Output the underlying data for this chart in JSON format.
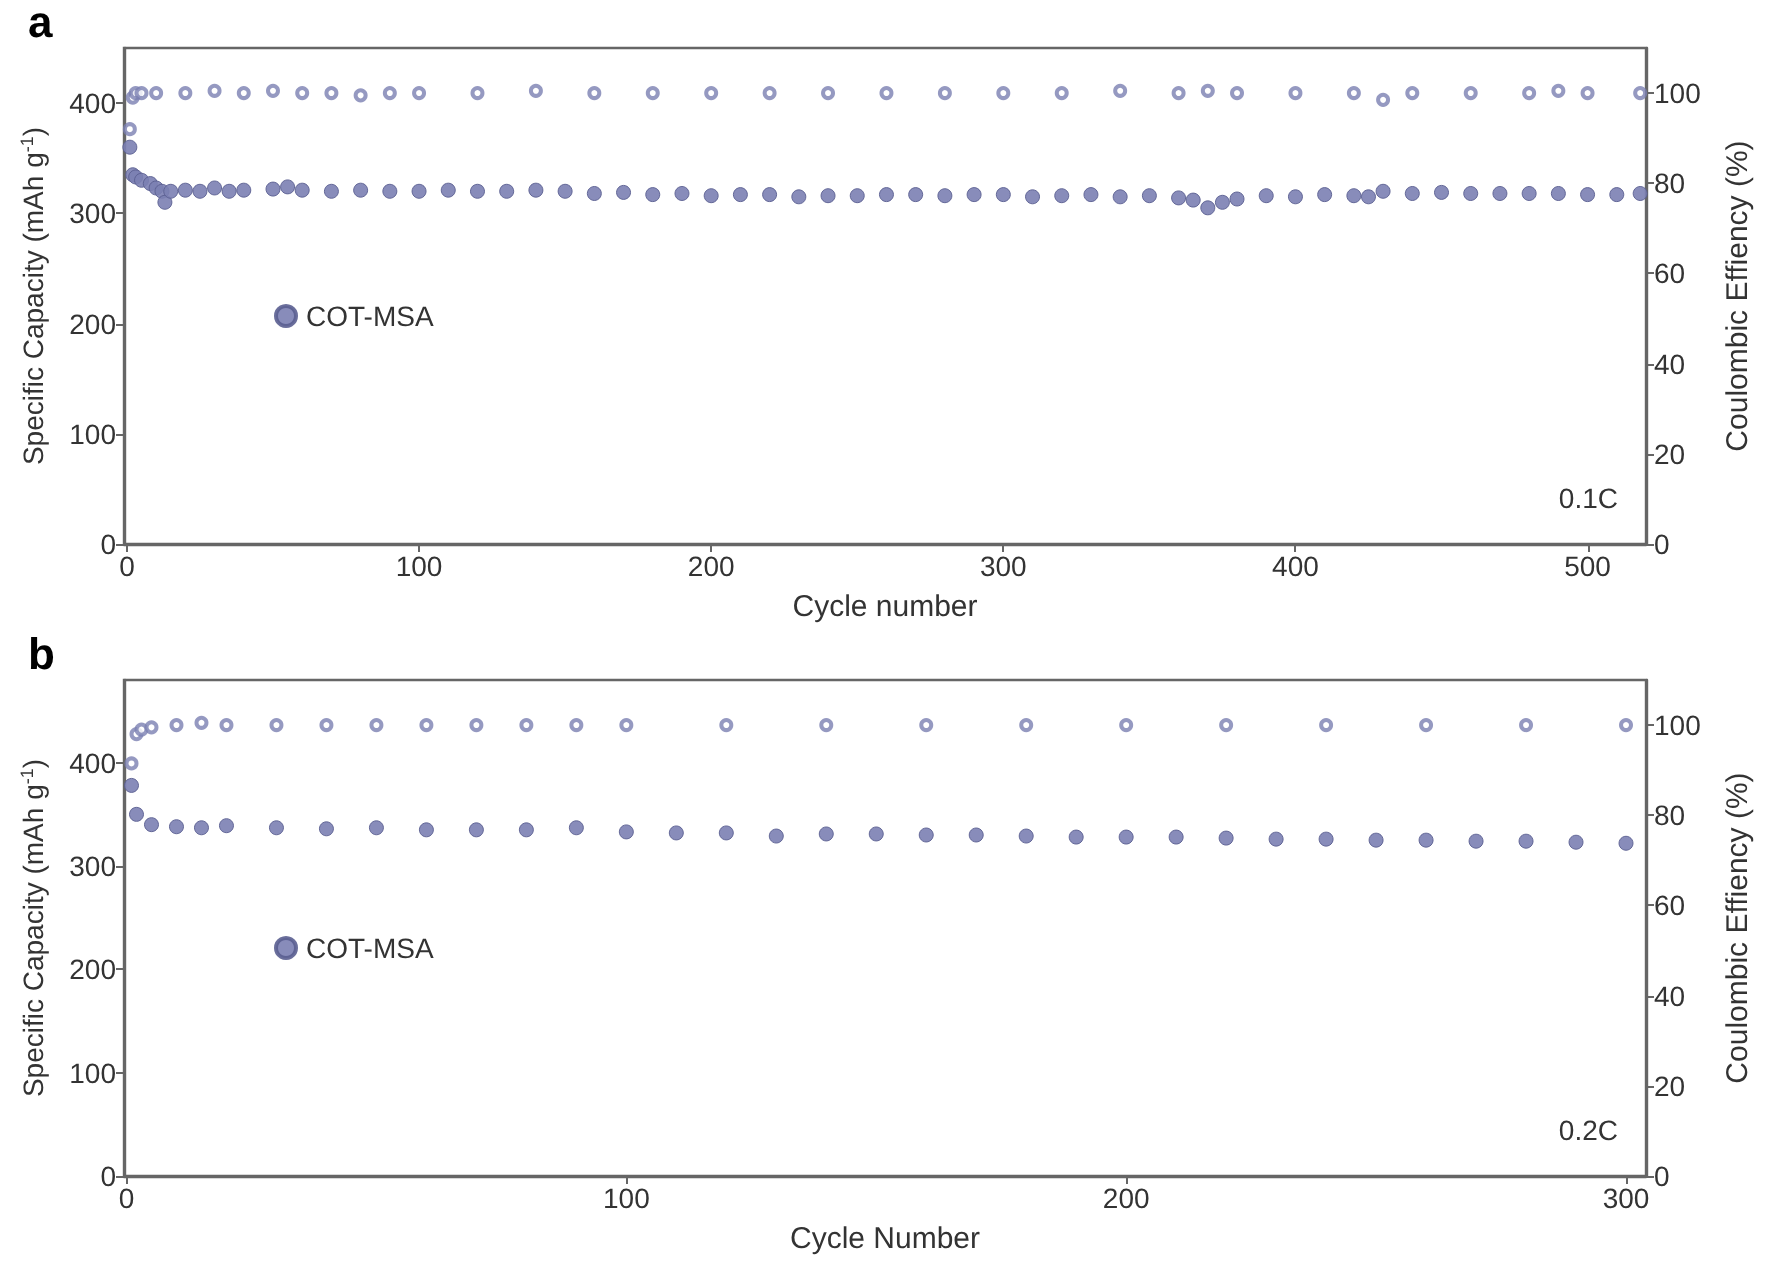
{
  "chart_data": [
    {
      "type": "scatter",
      "title": "a",
      "xlabel": "Cycle number",
      "ylabel": "Specific Capacity (mAh g$^{-1}$)",
      "y2label": "Coulombic Effiency (%)",
      "annotations": [
        "0.1C"
      ],
      "xlim": [
        -1,
        520
      ],
      "xticks": [
        0,
        100,
        200,
        300,
        400,
        500
      ],
      "ylim": [
        0,
        450
      ],
      "yticks": [
        0,
        100,
        200,
        300,
        400
      ],
      "y2lim": [
        0,
        110
      ],
      "y2ticks": [
        0,
        20,
        40,
        60,
        80,
        100
      ],
      "grid": false,
      "legend": "left",
      "marker": "circle",
      "series": [
        {
          "name": "COT-MSA",
          "color": "#7b7fb2",
          "x": [
            1,
            2,
            3,
            5,
            8,
            10,
            12,
            13,
            15,
            20,
            25,
            30,
            35,
            40,
            50,
            55,
            60,
            70,
            80,
            90,
            100,
            110,
            120,
            130,
            140,
            150,
            160,
            170,
            180,
            190,
            200,
            210,
            220,
            230,
            240,
            250,
            260,
            270,
            280,
            290,
            300,
            310,
            320,
            330,
            340,
            350,
            360,
            365,
            370,
            375,
            380,
            390,
            400,
            410,
            420,
            425,
            430,
            440,
            450,
            460,
            470,
            480,
            490,
            500,
            510,
            518
          ],
          "values": [
            360,
            335,
            333,
            330,
            327,
            323,
            320,
            310,
            320,
            321,
            320,
            323,
            320,
            321,
            322,
            324,
            321,
            320,
            321,
            320,
            320,
            321,
            320,
            320,
            321,
            320,
            318,
            319,
            317,
            318,
            316,
            317,
            317,
            315,
            316,
            316,
            317,
            317,
            316,
            317,
            317,
            315,
            316,
            317,
            315,
            316,
            314,
            312,
            305,
            310,
            313,
            316,
            315,
            317,
            316,
            315,
            320,
            318,
            319,
            318,
            318,
            318,
            318,
            317,
            317,
            318
          ]
        },
        {
          "color": "#7b7fb2",
          "axis": "y2",
          "marker": "circle",
          "x": [
            1,
            2,
            3,
            5,
            10,
            20,
            30,
            40,
            50,
            60,
            70,
            80,
            90,
            100,
            120,
            140,
            160,
            180,
            200,
            220,
            240,
            260,
            280,
            300,
            320,
            340,
            360,
            370,
            380,
            400,
            420,
            430,
            440,
            460,
            480,
            490,
            500,
            518
          ],
          "values": [
            92,
            99,
            100,
            100,
            100,
            100,
            100.5,
            100,
            100.5,
            100,
            100,
            99.5,
            100,
            100,
            100,
            100.5,
            100,
            100,
            100,
            100,
            100,
            100,
            100,
            100,
            100,
            100.5,
            100,
            100.5,
            100,
            100,
            100,
            98.5,
            100,
            100,
            100,
            100.5,
            100,
            100
          ]
        }
      ]
    },
    {
      "type": "scatter",
      "title": "b",
      "xlabel": "Cycle Number",
      "ylabel": "Specific Capacity (mAh g$^{-1}$)",
      "y2label": "Coulombic Effiency (%)",
      "annotations": [
        "0.2C"
      ],
      "xlim": [
        -0.5,
        304
      ],
      "xticks": [
        0,
        100,
        200,
        300
      ],
      "ylim": [
        0,
        480
      ],
      "yticks": [
        0,
        100,
        200,
        300,
        400
      ],
      "y2lim": [
        0,
        110
      ],
      "y2ticks": [
        0,
        20,
        40,
        60,
        80,
        100
      ],
      "grid": false,
      "legend": "left",
      "marker": "circle",
      "series": [
        {
          "name": "COT-MSA",
          "color": "#7b7fb2",
          "x": [
            1,
            2,
            5,
            10,
            15,
            20,
            30,
            40,
            50,
            60,
            70,
            80,
            90,
            100,
            110,
            120,
            130,
            140,
            150,
            160,
            170,
            180,
            190,
            200,
            210,
            220,
            230,
            240,
            250,
            260,
            270,
            280,
            290,
            300
          ],
          "values": [
            378,
            350,
            340,
            338,
            337,
            339,
            337,
            336,
            337,
            335,
            335,
            335,
            337,
            333,
            332,
            332,
            329,
            331,
            331,
            330,
            330,
            329,
            328,
            328,
            328,
            327,
            326,
            326,
            325,
            325,
            324,
            324,
            323,
            322
          ]
        },
        {
          "color": "#7b7fb2",
          "axis": "y2",
          "marker": "circle",
          "x": [
            1,
            2,
            3,
            5,
            10,
            15,
            20,
            30,
            40,
            50,
            60,
            70,
            80,
            90,
            100,
            120,
            140,
            160,
            180,
            200,
            220,
            240,
            260,
            280,
            300
          ],
          "values": [
            91.5,
            98,
            99,
            99.5,
            100,
            100.5,
            100,
            100,
            100,
            100,
            100,
            100,
            100,
            100,
            100,
            100,
            100,
            100,
            100,
            100,
            100,
            100,
            100,
            100,
            100
          ]
        }
      ]
    }
  ]
}
